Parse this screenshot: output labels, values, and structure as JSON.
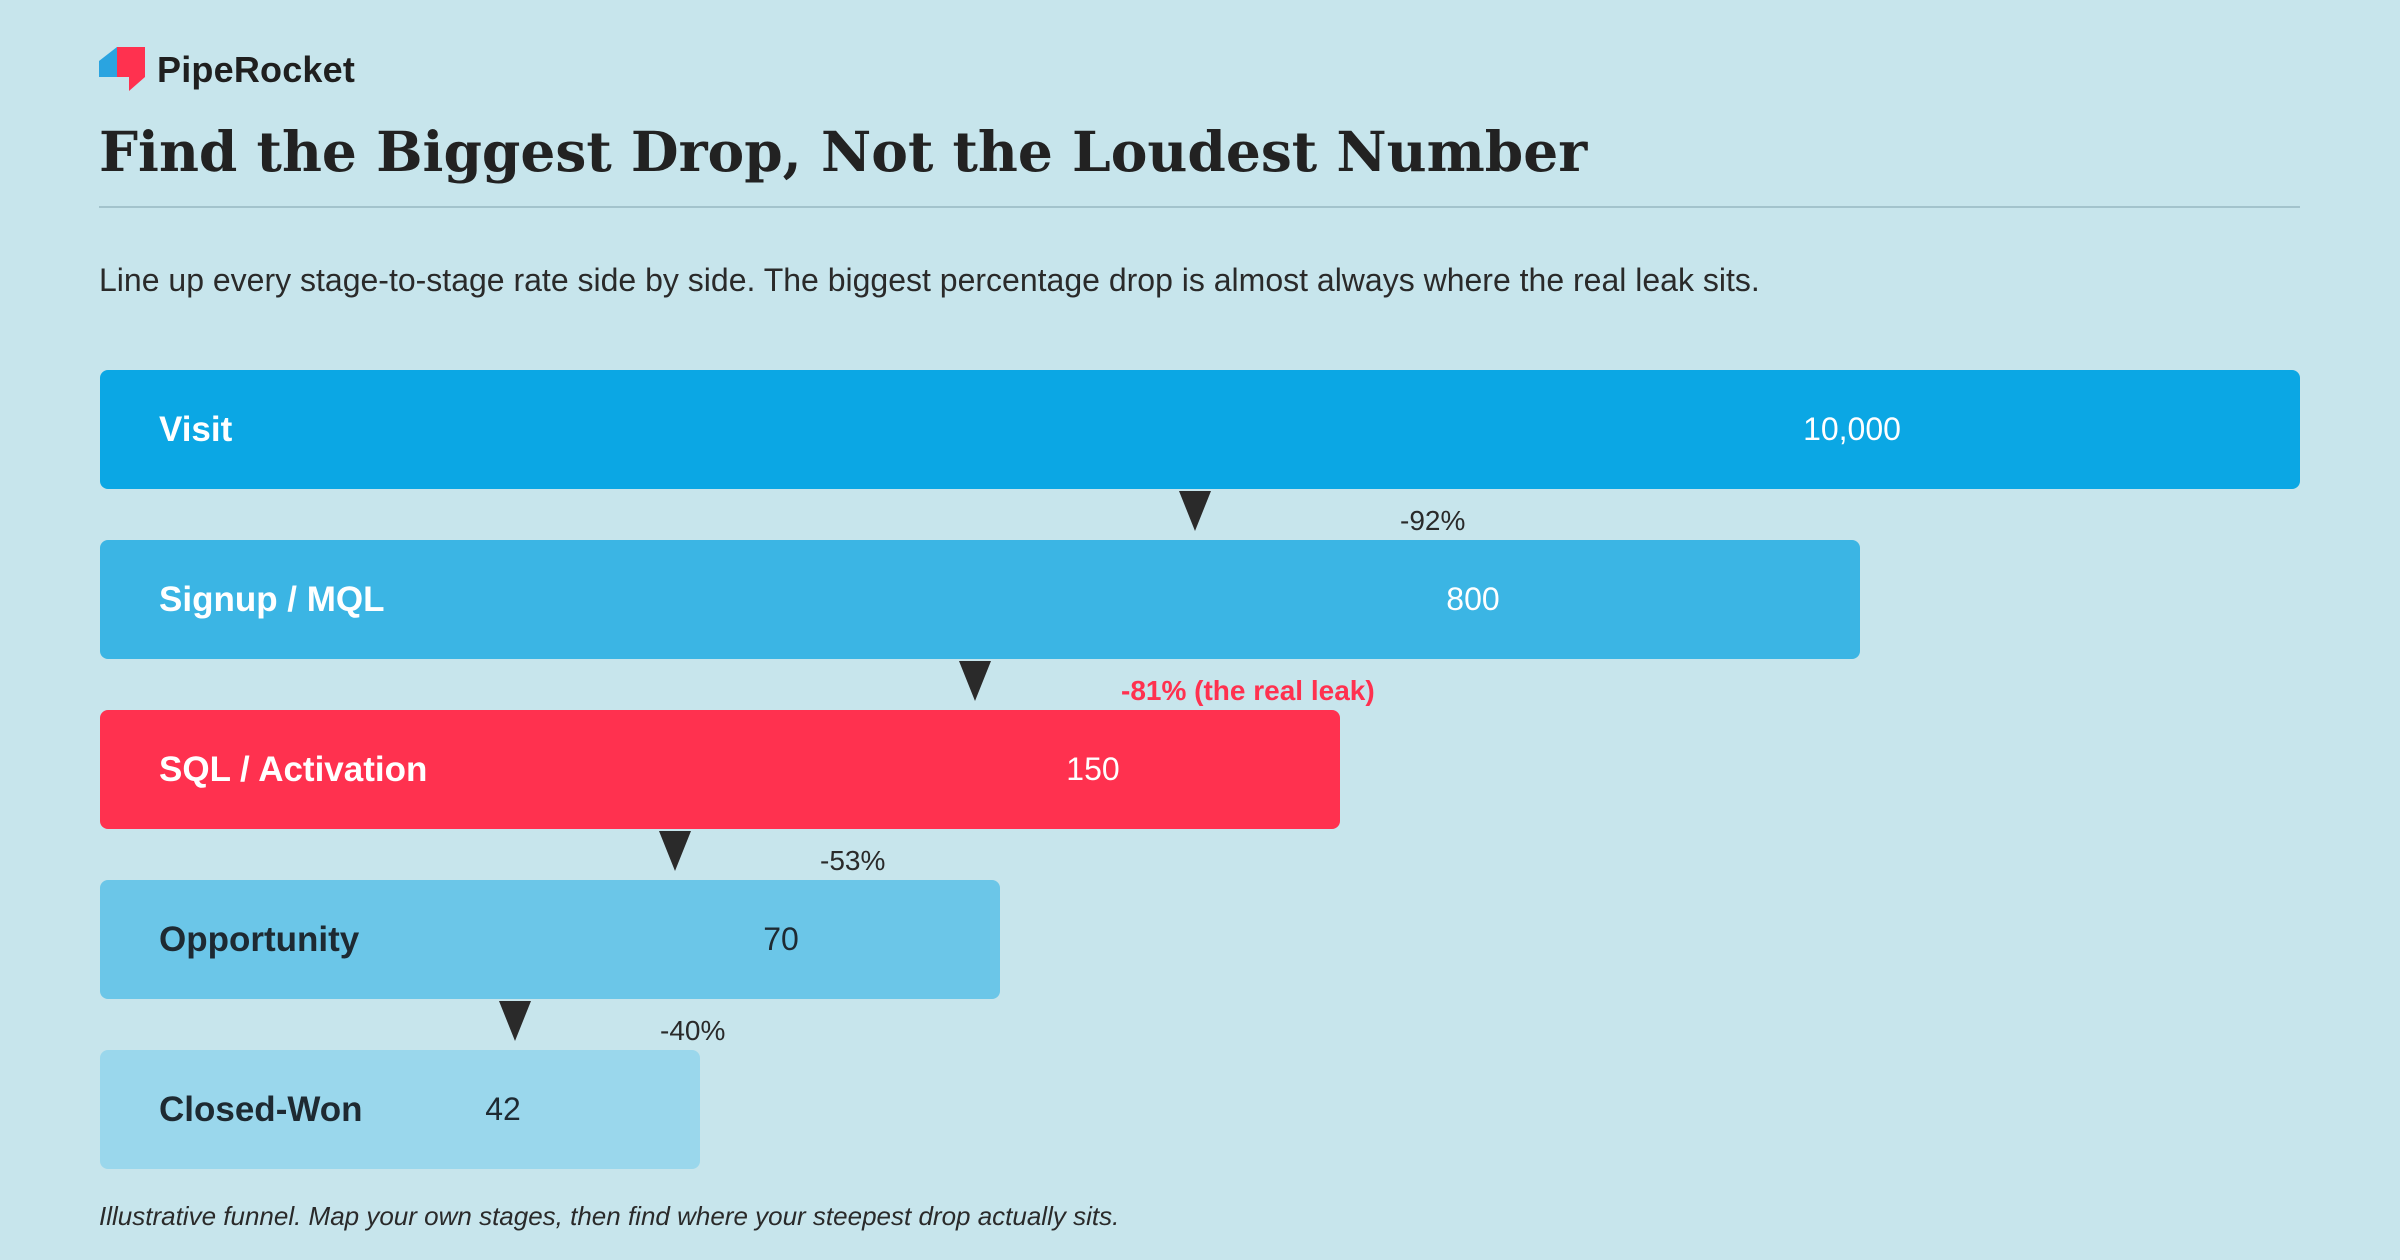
{
  "brand": {
    "name": "PipeRocket",
    "logo_icon": "piperocket-logo-icon",
    "logo_colors": [
      "#2aa4e0",
      "#ff314f"
    ]
  },
  "header": {
    "title": "Find the Biggest Drop, Not the Loudest Number",
    "subtitle": "Line up every stage-to-stage rate side by side. The biggest percentage drop is almost always where the real leak sits."
  },
  "colors": {
    "background": "#c7e5ec",
    "accent_leak": "#ff314f",
    "arrow": "#2a2a2a",
    "text_dark": "#222222"
  },
  "chart_data": {
    "type": "bar",
    "orientation": "horizontal funnel",
    "categories": [
      "Visit",
      "Signup / MQL",
      "SQL / Activation",
      "Opportunity",
      "Closed-Won"
    ],
    "values": [
      10000,
      800,
      150,
      70,
      42
    ],
    "value_labels": [
      "10,000",
      "800",
      "150",
      "70",
      "42"
    ],
    "bar_colors": [
      "#0ba7e4",
      "#3bb5e4",
      "#ff314f",
      "#6bc6e8",
      "#9ad7ec"
    ],
    "label_colors": [
      "#ffffff",
      "#ffffff",
      "#ffffff",
      "#1e2a32",
      "#1e2a32"
    ],
    "drops": [
      {
        "from": "Visit",
        "to": "Signup / MQL",
        "label": "-92%",
        "highlight": false
      },
      {
        "from": "Signup / MQL",
        "to": "SQL / Activation",
        "label": "-81% (the real leak)",
        "highlight": true
      },
      {
        "from": "SQL / Activation",
        "to": "Opportunity",
        "label": "-53%",
        "highlight": false
      },
      {
        "from": "Opportunity",
        "to": "Closed-Won",
        "label": "-40%",
        "highlight": false
      }
    ],
    "legend": "none",
    "grid": false
  },
  "footer": {
    "note": "Illustrative funnel. Map your own stages, then find where your steepest drop actually sits."
  }
}
